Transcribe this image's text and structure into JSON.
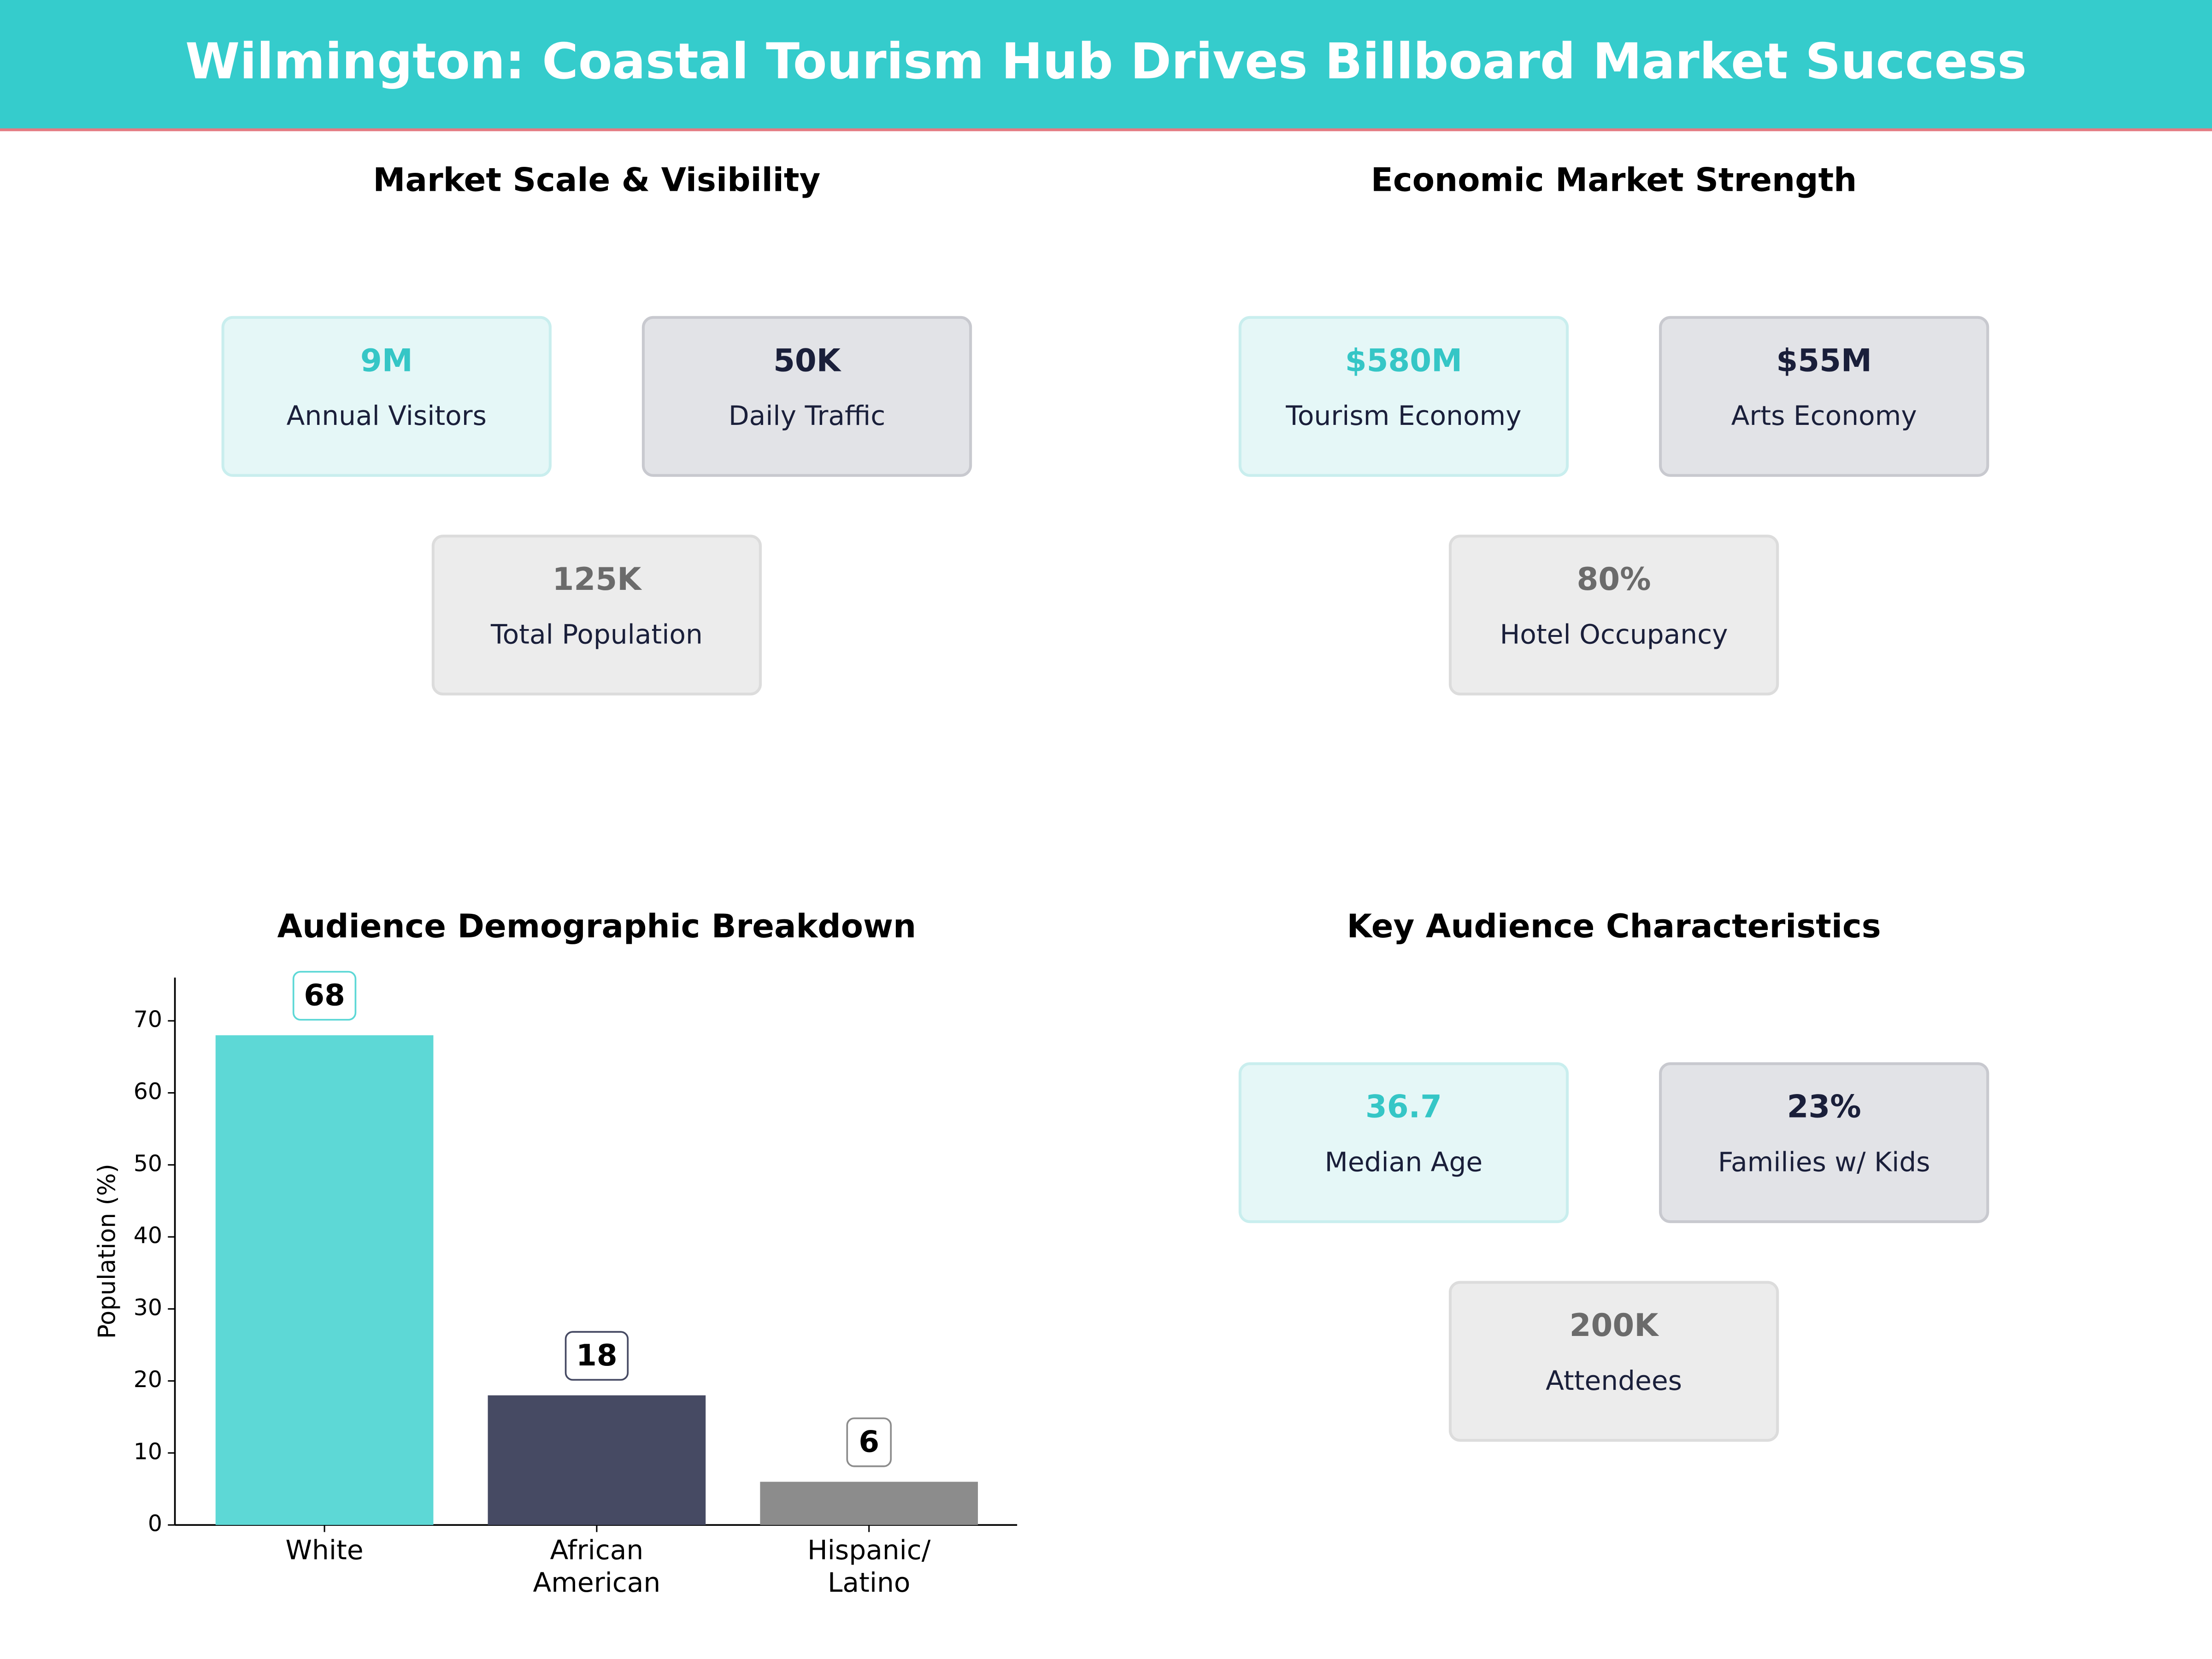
{
  "header": {
    "title": "Wilmington: Coastal Tourism Hub Drives Billboard Market Success"
  },
  "panels": [
    {
      "title": "Market Scale & Visibility",
      "cards": [
        {
          "value": "9M",
          "label": "Annual Visitors"
        },
        {
          "value": "50K",
          "label": "Daily Traffic"
        },
        {
          "value": "125K",
          "label": "Total Population"
        }
      ]
    },
    {
      "title": "Economic Market Strength",
      "cards": [
        {
          "value": "$580M",
          "label": "Tourism Economy"
        },
        {
          "value": "$55M",
          "label": "Arts Economy"
        },
        {
          "value": "80%",
          "label": "Hotel Occupancy"
        }
      ]
    },
    {
      "title": "Key Audience Characteristics",
      "cards": [
        {
          "value": "36.7",
          "label": "Median Age"
        },
        {
          "value": "23%",
          "label": "Families w/ Kids"
        },
        {
          "value": "200K",
          "label": "Attendees"
        }
      ]
    }
  ],
  "chart_data": {
    "type": "bar",
    "title": "Audience Demographic Breakdown",
    "categories": [
      "White",
      "African\nAmerican",
      "Hispanic/\nLatino"
    ],
    "values": [
      68,
      18,
      6
    ],
    "colors": [
      "#5dd8d6",
      "#464a63",
      "#8c8c8c"
    ],
    "ylabel": "Population (%)",
    "ylim": [
      0,
      76
    ],
    "yticks": [
      0,
      10,
      20,
      30,
      40,
      50,
      60,
      70
    ],
    "grid": false
  }
}
